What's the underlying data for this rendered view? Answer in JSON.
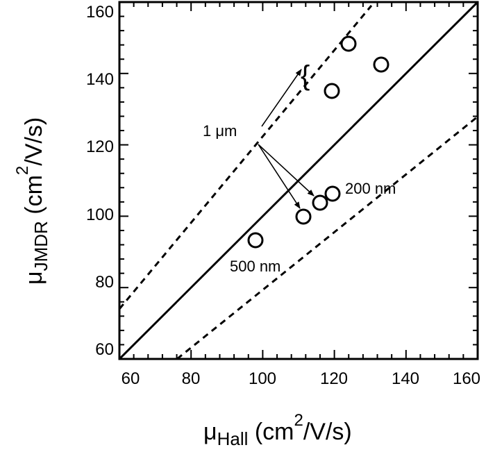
{
  "chart_data": {
    "type": "scatter",
    "title": "",
    "xlabel": "μ_Hall (cm^2/V/s)",
    "ylabel": "μ_JMDR (cm^2/V/s)",
    "xlim": [
      60,
      160
    ],
    "ylim": [
      60,
      160
    ],
    "xticks": [
      60,
      80,
      100,
      120,
      140,
      160
    ],
    "yticks": [
      60,
      80,
      100,
      120,
      140,
      160
    ],
    "grid": false,
    "legend": null,
    "series": [
      {
        "name": "samples",
        "marker": "open-circle",
        "points": [
          {
            "x": 124,
            "y": 148
          },
          {
            "x": 133,
            "y": 142
          },
          {
            "x": 119,
            "y": 135
          },
          {
            "x": 98,
            "y": 93
          },
          {
            "x": 111,
            "y": 100
          },
          {
            "x": 116,
            "y": 104
          },
          {
            "x": 120,
            "y": 106
          }
        ]
      }
    ],
    "reference_lines": [
      {
        "name": "y = x",
        "style": "solid",
        "slope": 1.0
      },
      {
        "name": "y = 1.2x",
        "style": "dashed",
        "slope": 1.2
      },
      {
        "name": "y = 0.8x",
        "style": "dashed",
        "slope": 0.8
      }
    ],
    "annotations": [
      {
        "text": "1 μm",
        "x": 97,
        "y": 123
      },
      {
        "text": "200 nm",
        "x": 130,
        "y": 107
      },
      {
        "text": "500 nm",
        "x": 103,
        "y": 84
      },
      {
        "text": "{",
        "x": 111,
        "y": 139
      }
    ]
  },
  "labels": {
    "xaxis_mu": "μ",
    "xaxis_sub": "Hall",
    "xaxis_unit_pre": " (cm",
    "xaxis_sup": "2",
    "xaxis_unit_post": "/V/s)",
    "yaxis_mu": "μ",
    "yaxis_sub": "JMDR",
    "yaxis_unit_pre": " (cm",
    "yaxis_sup": "2",
    "yaxis_unit_post": "/V/s)",
    "xtick_labels": [
      "60",
      "80",
      "100",
      "120",
      "140",
      "160"
    ],
    "ytick_labels": [
      "60",
      "80",
      "100",
      "120",
      "140",
      "160"
    ],
    "ann_1um": "1 μm",
    "ann_200nm": "200 nm",
    "ann_500nm": "500 nm",
    "ann_brace": "{"
  }
}
